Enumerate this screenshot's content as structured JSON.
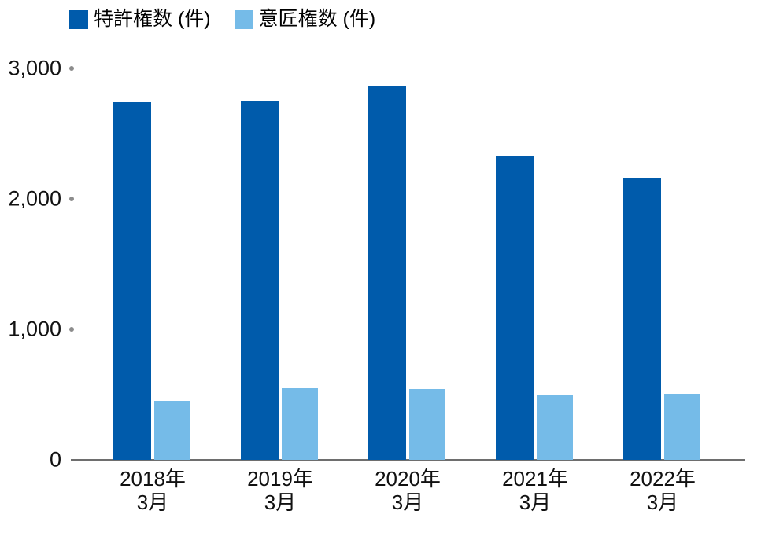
{
  "chart_data": {
    "type": "bar",
    "title": "",
    "xlabel": "",
    "ylabel": "",
    "categories": [
      [
        "2018年",
        "3月"
      ],
      [
        "2019年",
        "3月"
      ],
      [
        "2020年",
        "3月"
      ],
      [
        "2021年",
        "3月"
      ],
      [
        "2022年",
        "3月"
      ]
    ],
    "series": [
      {
        "name": "特許権数 (件)",
        "color": "#005BAB",
        "values": [
          2740,
          2750,
          2860,
          2330,
          2160
        ]
      },
      {
        "name": "意匠権数 (件)",
        "color": "#75BBE8",
        "values": [
          450,
          550,
          540,
          495,
          505
        ]
      }
    ],
    "ylim": [
      0,
      3000
    ],
    "yticks": [
      {
        "value": 0,
        "label": "0",
        "dot": false
      },
      {
        "value": 1000,
        "label": "1,000",
        "dot": true
      },
      {
        "value": 2000,
        "label": "2,000",
        "dot": true
      },
      {
        "value": 3000,
        "label": "3,000",
        "dot": true
      }
    ],
    "grid": "off",
    "legend_position": "top-left"
  },
  "colors": {
    "patent_bar": "#005BAB",
    "design_bar": "#75BBE8",
    "axis_line": "#6e6e6e",
    "tick_dot": "#8c8c8c",
    "text": "#111111"
  }
}
